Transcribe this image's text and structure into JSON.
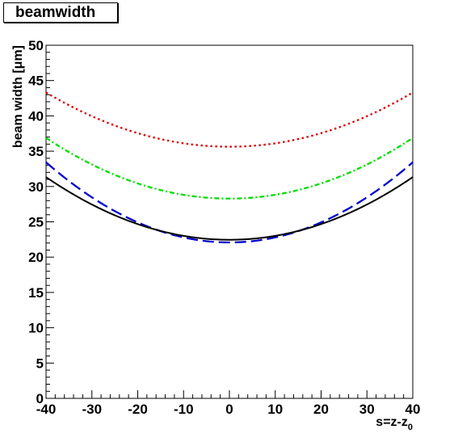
{
  "chart_data": {
    "type": "line",
    "title": "beamwidth",
    "xlabel": "s=z-z",
    "xlabel_subscript": "0",
    "ylabel": "beam width [μm]",
    "xlim": [
      -40,
      40
    ],
    "ylim": [
      0,
      50
    ],
    "x_ticks": [
      -40,
      -30,
      -20,
      -10,
      0,
      10,
      20,
      30,
      40
    ],
    "y_ticks": [
      0,
      5,
      10,
      15,
      20,
      25,
      30,
      35,
      40,
      45,
      50
    ],
    "grid": false,
    "series": [
      {
        "style": "dotted",
        "color": "#dd0000",
        "x": [
          -40,
          -30,
          -20,
          -10,
          0,
          10,
          20,
          30,
          40
        ],
        "y": [
          43.2,
          40.1,
          37.7,
          36.0,
          35.5,
          36.0,
          37.7,
          40.1,
          43.2
        ]
      },
      {
        "style": "dash-dot",
        "color": "#00dd00",
        "x": [
          -40,
          -30,
          -20,
          -10,
          0,
          10,
          20,
          30,
          40
        ],
        "y": [
          37.0,
          33.0,
          30.2,
          28.9,
          28.6,
          28.9,
          30.2,
          33.0,
          37.0
        ]
      },
      {
        "style": "dashed",
        "color": "#0000cc",
        "x": [
          -40,
          -30,
          -20,
          -10,
          0,
          10,
          20,
          30,
          40
        ],
        "y": [
          33.4,
          28.5,
          25.0,
          22.7,
          22.1,
          22.7,
          25.0,
          28.5,
          33.4
        ]
      },
      {
        "style": "solid",
        "color": "#000000",
        "x": [
          -40,
          -30,
          -20,
          -10,
          0,
          10,
          20,
          30,
          40
        ],
        "y": [
          31.3,
          27.5,
          24.7,
          23.0,
          22.4,
          23.0,
          24.7,
          27.5,
          31.3
        ]
      }
    ]
  }
}
